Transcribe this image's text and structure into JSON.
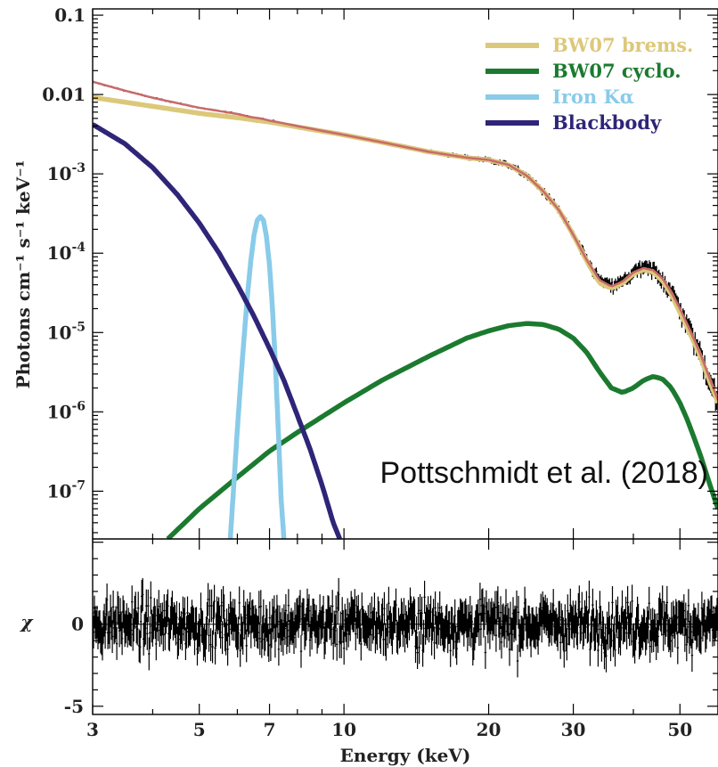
{
  "chart_data": [
    {
      "type": "line",
      "panel": "spectrum",
      "ylabel": "Photons cm⁻¹ s⁻¹ keV⁻¹",
      "xscale": "log",
      "yscale": "log",
      "xlim": [
        3,
        60
      ],
      "ylim": [
        2.5e-08,
        0.12
      ],
      "y_ticks": [
        {
          "value": 0.1,
          "label": "0.1"
        },
        {
          "value": 0.01,
          "label": "0.01"
        },
        {
          "value": 0.001,
          "mant": "10",
          "exp": "-3"
        },
        {
          "value": 0.0001,
          "mant": "10",
          "exp": "-4"
        },
        {
          "value": 1e-05,
          "mant": "10",
          "exp": "-5"
        },
        {
          "value": 1e-06,
          "mant": "10",
          "exp": "-6"
        },
        {
          "value": 1e-07,
          "mant": "10",
          "exp": "-7"
        }
      ],
      "legend_position": "top-right",
      "annotation": "Pottschmidt et al. (2018)",
      "series": [
        {
          "name": "BW07 brems.",
          "color": "#dcc87a",
          "x": [
            3,
            4,
            5,
            6,
            7,
            8,
            10,
            12,
            15,
            18,
            20,
            22,
            24,
            26,
            28,
            30,
            32,
            34,
            36,
            38,
            40,
            42,
            44,
            46,
            48,
            50,
            52,
            55,
            58,
            60
          ],
          "y": [
            0.0092,
            0.0071,
            0.0058,
            0.0051,
            0.0045,
            0.0039,
            0.0031,
            0.0025,
            0.0019,
            0.0016,
            0.0015,
            0.0013,
            0.00095,
            0.0006,
            0.00035,
            0.00017,
            8e-05,
            4.2e-05,
            3.6e-05,
            4.2e-05,
            5.5e-05,
            6.2e-05,
            5.8e-05,
            4.5e-05,
            3e-05,
            1.8e-05,
            1.1e-05,
            5.2e-06,
            2.2e-06,
            1.3e-06
          ]
        },
        {
          "name": "BW07 cyclo.",
          "color": "#1b7a2f",
          "x": [
            4.3,
            5,
            6,
            7,
            8,
            10,
            12,
            15,
            18,
            20,
            22,
            24,
            26,
            28,
            30,
            32,
            34,
            36,
            38,
            40,
            42,
            44,
            46,
            48,
            50,
            52,
            55,
            58,
            60
          ],
          "y": [
            2.5e-08,
            6e-08,
            1.5e-07,
            3.2e-07,
            5.5e-07,
            1.3e-06,
            2.5e-06,
            5e-06,
            8.5e-06,
            1.05e-05,
            1.22e-05,
            1.3e-05,
            1.26e-05,
            1.1e-05,
            8.5e-06,
            5.6e-06,
            3.2e-06,
            2e-06,
            1.75e-06,
            2e-06,
            2.5e-06,
            2.8e-06,
            2.6e-06,
            2e-06,
            1.3e-06,
            7.5e-07,
            3e-07,
            1.1e-07,
            6e-08
          ]
        },
        {
          "name": "Iron Kα",
          "color": "#89cbe9",
          "x": [
            5.8,
            5.9,
            6.0,
            6.1,
            6.2,
            6.3,
            6.4,
            6.5,
            6.6,
            6.7,
            6.8,
            6.9,
            7.0,
            7.1,
            7.2,
            7.3,
            7.4,
            7.5
          ],
          "y": [
            2.5e-08,
            1.2e-07,
            6e-07,
            2.5e-06,
            9e-06,
            3e-05,
            8e-05,
            0.00017,
            0.00026,
            0.00029,
            0.00026,
            0.00016,
            7e-05,
            2e-05,
            4e-06,
            6e-07,
            8e-08,
            2.5e-08
          ]
        },
        {
          "name": "Blackbody",
          "color": "#2e2578",
          "x": [
            3,
            3.5,
            4,
            4.5,
            5,
            5.5,
            6,
            6.5,
            7,
            7.5,
            8,
            8.5,
            9,
            9.5,
            9.8
          ],
          "y": [
            0.0042,
            0.0024,
            0.0012,
            0.00055,
            0.00024,
            0.0001,
            4e-05,
            1.6e-05,
            6.3e-06,
            2.5e-06,
            9e-07,
            3.4e-07,
            1.2e-07,
            4e-08,
            2.5e-08
          ]
        },
        {
          "name": "",
          "color": "#c96a6a",
          "x": [
            3,
            3.5,
            4,
            5,
            6,
            6.4,
            6.7,
            7,
            8,
            10,
            12,
            15,
            18,
            20,
            22,
            24,
            26,
            28,
            30,
            32,
            34,
            36,
            38,
            40,
            42,
            44,
            46,
            48,
            50,
            52,
            55,
            58,
            60
          ],
          "y": [
            0.0145,
            0.0112,
            0.0091,
            0.0068,
            0.0057,
            0.0052,
            0.005,
            0.0047,
            0.004,
            0.0031,
            0.0025,
            0.0019,
            0.0016,
            0.0015,
            0.0013,
            0.00095,
            0.0006,
            0.00035,
            0.00017,
            8.2e-05,
            4.6e-05,
            3.8e-05,
            4.4e-05,
            5.7e-05,
            6.5e-05,
            6.1e-05,
            4.8e-05,
            3.2e-05,
            2e-05,
            1.2e-05,
            5.6e-06,
            2.4e-06,
            1.4e-06
          ]
        }
      ]
    },
    {
      "type": "scatter",
      "panel": "residuals",
      "ylabel": "χ",
      "xlabel": "Energy (keV)",
      "xscale": "log",
      "xlim": [
        3,
        60
      ],
      "ylim": [
        -5.5,
        5.2
      ],
      "x_ticks": [
        3,
        5,
        7,
        10,
        20,
        30,
        50
      ],
      "y_ticks": [
        0,
        -5
      ],
      "noise_range": [
        -3.5,
        3.5
      ]
    }
  ]
}
